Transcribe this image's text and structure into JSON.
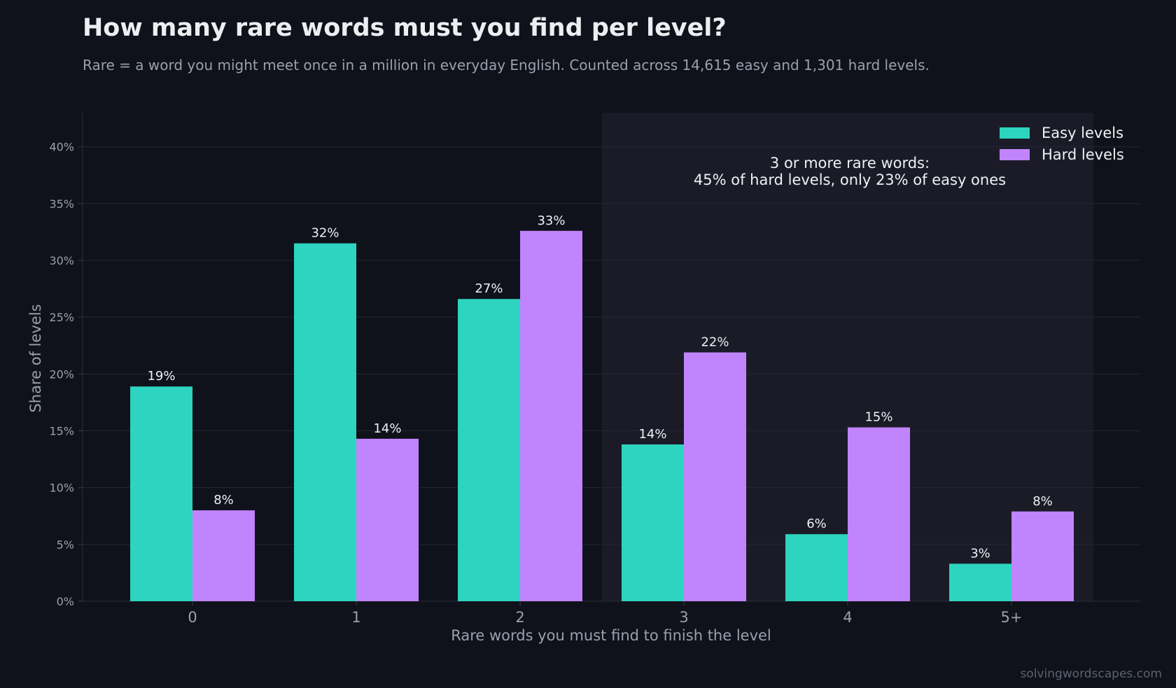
{
  "header": {
    "title": "How many rare words must you find per level?",
    "subtitle": "Rare = a word you might meet once in a million in everyday English. Counted across 14,615 easy and 1,301 hard levels."
  },
  "footer": {
    "credit": "solvingwordscapes.com"
  },
  "colors": {
    "easy": "#2dd4bf",
    "hard": "#c084fc",
    "background": "#0f121a",
    "highlight_band": "#1b1b28"
  },
  "chart_data": {
    "type": "bar",
    "categories": [
      "0",
      "1",
      "2",
      "3",
      "4",
      "5+"
    ],
    "series": [
      {
        "name": "Easy levels",
        "values": [
          18.9,
          31.5,
          26.6,
          13.8,
          5.9,
          3.3
        ],
        "labels": [
          "19%",
          "32%",
          "27%",
          "14%",
          "6%",
          "3%"
        ]
      },
      {
        "name": "Hard levels",
        "values": [
          8.0,
          14.3,
          32.6,
          21.9,
          15.3,
          7.9
        ],
        "labels": [
          "8%",
          "14%",
          "33%",
          "22%",
          "15%",
          "8%"
        ]
      }
    ],
    "xlabel": "Rare words you must find to finish the level",
    "ylabel": "Share of levels",
    "ylim": [
      0,
      43
    ],
    "yticks": [
      0,
      5,
      10,
      15,
      20,
      25,
      30,
      35,
      40
    ],
    "ytick_labels": [
      "0%",
      "5%",
      "10%",
      "15%",
      "20%",
      "25%",
      "30%",
      "35%",
      "40%"
    ],
    "grid": true,
    "legend_position": "top-right",
    "highlight": {
      "from_category": "3",
      "to_category": "5+",
      "annotation": [
        "3 or more rare words:",
        "45% of hard levels, only 23% of easy ones"
      ]
    }
  }
}
